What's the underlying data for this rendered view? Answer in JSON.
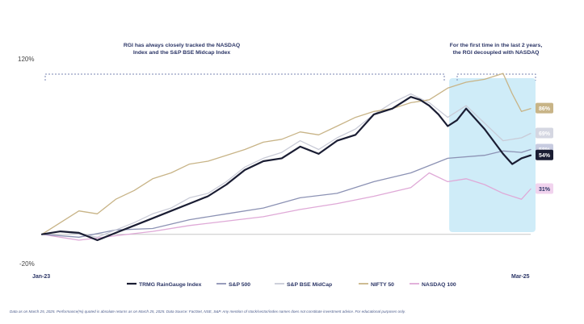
{
  "chart_data": {
    "type": "line",
    "title": "",
    "xlabel": "",
    "ylabel": "",
    "ylim": [
      -20,
      120
    ],
    "y_ticks": [
      "120%",
      "-20%"
    ],
    "x_ticks": [
      "Jan-23",
      "Mar-25"
    ],
    "x_range": [
      0,
      26.5
    ],
    "annotations": [
      {
        "lines": [
          "RGI has always closely tracked the NASDAQ",
          "Index and the S&P BSE Midcap Index"
        ]
      },
      {
        "lines": [
          "For the first time in the last 2 years,",
          "the RGI decoupled with NASDAQ"
        ]
      }
    ],
    "highlight_range": [
      22.3,
      26.5
    ],
    "end_labels": [
      "86%",
      "69%",
      "58%",
      "54%",
      "31%"
    ],
    "series": [
      {
        "name": "TRMG RainGauge Index",
        "color": "#1a1d33",
        "x": [
          0,
          1,
          2,
          3,
          4,
          5,
          6,
          7,
          8,
          9,
          10,
          11,
          12,
          13,
          14,
          15,
          16,
          17,
          18,
          19,
          20,
          20.5,
          21,
          21.5,
          22,
          22.5,
          23,
          24,
          25,
          25.5,
          26,
          26.5
        ],
        "values": [
          0,
          2,
          1,
          -4,
          1,
          6,
          11,
          16,
          21,
          26,
          34,
          44,
          50,
          52,
          60,
          55,
          64,
          68,
          82,
          86,
          94,
          92,
          88,
          82,
          74,
          78,
          86,
          72,
          55,
          48,
          52,
          54
        ]
      },
      {
        "name": "S&P 500",
        "color": "#8c92b4",
        "x": [
          0,
          2,
          4,
          6,
          8,
          10,
          12,
          14,
          16,
          18,
          20,
          22,
          24,
          25,
          26,
          26.5
        ],
        "values": [
          0,
          -2,
          3,
          4,
          10,
          14,
          18,
          25,
          28,
          36,
          42,
          52,
          54,
          57,
          56,
          58
        ]
      },
      {
        "name": "S&P BSE MidCap",
        "color": "#c9cbd7",
        "x": [
          0,
          1,
          2,
          3,
          4,
          5,
          6,
          7,
          8,
          9,
          10,
          11,
          12,
          13,
          14,
          15,
          16,
          17,
          18,
          19,
          20,
          21,
          22,
          23,
          24,
          25,
          26,
          26.5
        ],
        "values": [
          0,
          2,
          0,
          -2,
          3,
          8,
          14,
          18,
          25,
          28,
          36,
          46,
          52,
          56,
          64,
          58,
          66,
          72,
          82,
          90,
          96,
          90,
          80,
          88,
          76,
          64,
          66,
          69
        ]
      },
      {
        "name": "NIFTY 50",
        "color": "#c8b487",
        "x": [
          0,
          1,
          2,
          3,
          4,
          5,
          6,
          7,
          8,
          9,
          10,
          11,
          12,
          13,
          14,
          15,
          16,
          17,
          18,
          19,
          20,
          21,
          22,
          23,
          24,
          25,
          25.5,
          26,
          26.5
        ],
        "values": [
          0,
          8,
          16,
          14,
          24,
          30,
          38,
          42,
          48,
          50,
          54,
          58,
          63,
          65,
          70,
          68,
          74,
          80,
          84,
          86,
          90,
          92,
          100,
          104,
          106,
          110,
          96,
          84,
          86
        ]
      },
      {
        "name": "NASDAQ 100",
        "color": "#dfa9d7",
        "x": [
          0,
          2,
          4,
          6,
          8,
          10,
          12,
          14,
          16,
          18,
          20,
          21,
          22,
          23,
          24,
          25,
          26,
          26.5
        ],
        "values": [
          0,
          -4,
          -1,
          2,
          6,
          9,
          12,
          17,
          21,
          26,
          32,
          42,
          36,
          38,
          34,
          28,
          24,
          31
        ]
      }
    ]
  },
  "footnote": "Data as on March 25, 2025. Performance(%) quoted is absolute returns as on March 25, 2025. Data Source: FactSet, NSE, S&P. Any mention of stock/sector/index names does not constitute investment advice. For educational purposes only."
}
